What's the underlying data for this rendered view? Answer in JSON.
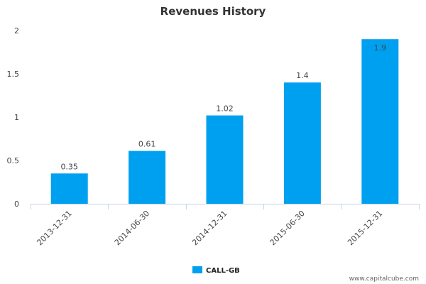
{
  "chart_data": {
    "type": "bar",
    "title": "Revenues History",
    "categories": [
      "2013-12-31",
      "2014-06-30",
      "2014-12-31",
      "2015-06-30",
      "2015-12-31"
    ],
    "series": [
      {
        "name": "CALL-GB",
        "values": [
          0.35,
          0.61,
          1.02,
          1.4,
          1.9
        ],
        "labels": [
          "0.35",
          "0.61",
          "1.02",
          "1.4",
          "1.9"
        ],
        "color": "#00a0f0"
      }
    ],
    "yticks": [
      "0",
      "0.5",
      "1",
      "1.5",
      "2"
    ],
    "ylim": [
      0,
      2
    ],
    "xlabel": "",
    "ylabel": "",
    "grid": false,
    "legend_position": "bottom-center"
  },
  "watermark": "www.capitalcube.com",
  "colors": {
    "axis": "#c8d4e6",
    "bar": "#00a0f0"
  }
}
